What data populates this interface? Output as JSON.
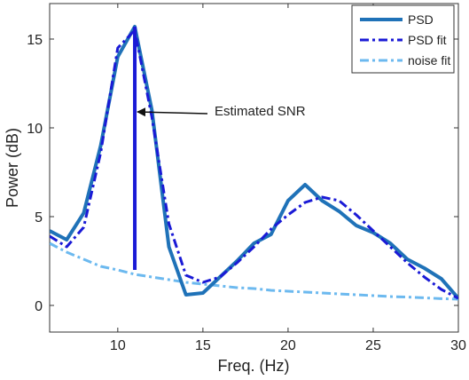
{
  "chart_data": {
    "type": "line",
    "xlabel": "Freq. (Hz)",
    "ylabel": "Power (dB)",
    "xlim": [
      6,
      30
    ],
    "ylim": [
      -1.5,
      17
    ],
    "xticks": [
      10,
      15,
      20,
      25,
      30
    ],
    "yticks": [
      0,
      5,
      10,
      15
    ],
    "grid": false,
    "legend_position": "top-right",
    "series": [
      {
        "name": "PSD",
        "color": "#1f72b8",
        "style": "solid",
        "x": [
          6,
          7,
          8,
          9,
          10,
          11,
          12,
          13,
          14,
          15,
          16,
          17,
          18,
          19,
          20,
          21,
          22,
          23,
          24,
          25,
          26,
          27,
          28,
          29,
          30
        ],
        "y": [
          4.2,
          3.7,
          5.2,
          9.0,
          14.0,
          15.7,
          11.0,
          3.3,
          0.6,
          0.7,
          1.6,
          2.5,
          3.5,
          4.0,
          5.9,
          6.8,
          5.9,
          5.3,
          4.5,
          4.1,
          3.5,
          2.6,
          2.1,
          1.5,
          0.4
        ]
      },
      {
        "name": "PSD fit",
        "color": "#1a1ad6",
        "style": "dashdot",
        "x": [
          6,
          7,
          8,
          9,
          10,
          11,
          12,
          13,
          14,
          15,
          16,
          17,
          18,
          19,
          20,
          21,
          22,
          23,
          24,
          25,
          26,
          27,
          28,
          29,
          30
        ],
        "y": [
          3.9,
          3.3,
          4.4,
          8.6,
          14.5,
          15.5,
          10.6,
          4.6,
          1.7,
          1.3,
          1.6,
          2.4,
          3.3,
          4.3,
          5.1,
          5.8,
          6.1,
          5.9,
          5.1,
          4.2,
          3.3,
          2.4,
          1.6,
          0.9,
          0.4
        ]
      },
      {
        "name": "noise fit",
        "color": "#6cb9ef",
        "style": "dashdot",
        "x": [
          6,
          7,
          8,
          9,
          10,
          11,
          12,
          13,
          14,
          15,
          16,
          17,
          18,
          19,
          20,
          21,
          22,
          23,
          24,
          25,
          26,
          27,
          28,
          29,
          30
        ],
        "y": [
          3.5,
          3.0,
          2.6,
          2.2,
          2.0,
          1.75,
          1.6,
          1.45,
          1.3,
          1.2,
          1.1,
          1.0,
          0.95,
          0.85,
          0.8,
          0.75,
          0.7,
          0.65,
          0.6,
          0.55,
          0.5,
          0.47,
          0.43,
          0.38,
          0.35
        ]
      }
    ],
    "annotations": [
      {
        "text": "Estimated SNR",
        "snr_bar": {
          "x": 11,
          "y_from": 2.0,
          "y_to": 15.7,
          "color": "#1a1ad6"
        },
        "arrow_target": {
          "x": 11,
          "y": 11.0
        }
      }
    ]
  }
}
